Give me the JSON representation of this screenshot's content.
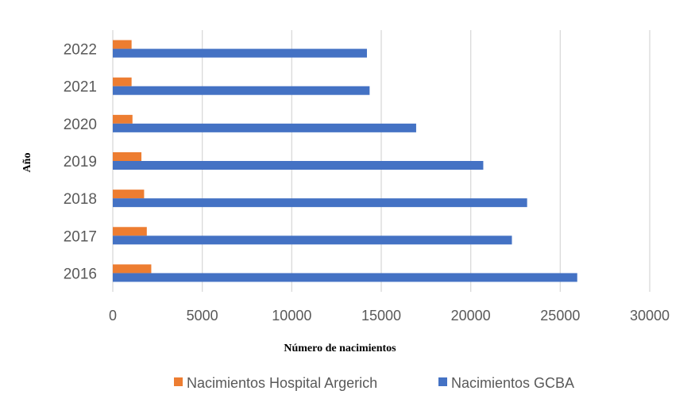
{
  "chart_data": {
    "type": "bar",
    "orientation": "horizontal",
    "categories": [
      "2016",
      "2017",
      "2018",
      "2019",
      "2020",
      "2021",
      "2022"
    ],
    "series": [
      {
        "name": "Nacimientos Hospital Argerich",
        "color": "#ed7d31",
        "values": [
          2150,
          1900,
          1750,
          1600,
          1100,
          1050,
          1050
        ]
      },
      {
        "name": "Nacimientos GCBA",
        "color": "#4472c4",
        "values": [
          25950,
          22300,
          23150,
          20700,
          16950,
          14350,
          14200
        ]
      }
    ],
    "xlabel": "Número de nacimientos",
    "ylabel": "Año",
    "xlim": [
      0,
      30000
    ],
    "xticks": [
      "0",
      "5000",
      "10000",
      "15000",
      "20000",
      "25000",
      "30000"
    ],
    "grid": "vertical",
    "legend": "bottom",
    "gridline_color": "#d9d9d9"
  }
}
